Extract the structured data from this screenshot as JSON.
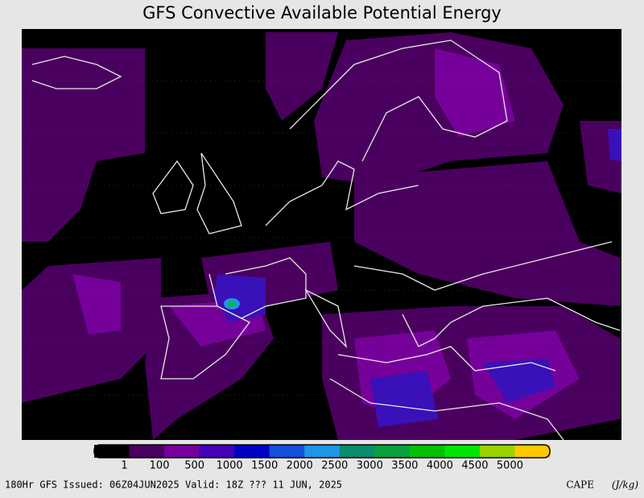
{
  "title": "GFS Convective Available Potential Energy",
  "colorbar": {
    "colors": [
      "#000000",
      "#4a005e",
      "#76009a",
      "#4400b4",
      "#0000c4",
      "#1450dc",
      "#1e96e6",
      "#0a8c6e",
      "#0aa03c",
      "#00c000",
      "#00e400",
      "#9ad200",
      "#ffc800"
    ],
    "labels": [
      1,
      100,
      500,
      1000,
      1500,
      2000,
      2500,
      3000,
      3500,
      4000,
      4500,
      5000
    ]
  },
  "footer": {
    "left": "180Hr GFS Issued: 06Z04JUN2025 Valid: 18Z ??? 11 JUN, 2025",
    "right": "CAPE",
    "units": "(J/kg)"
  }
}
